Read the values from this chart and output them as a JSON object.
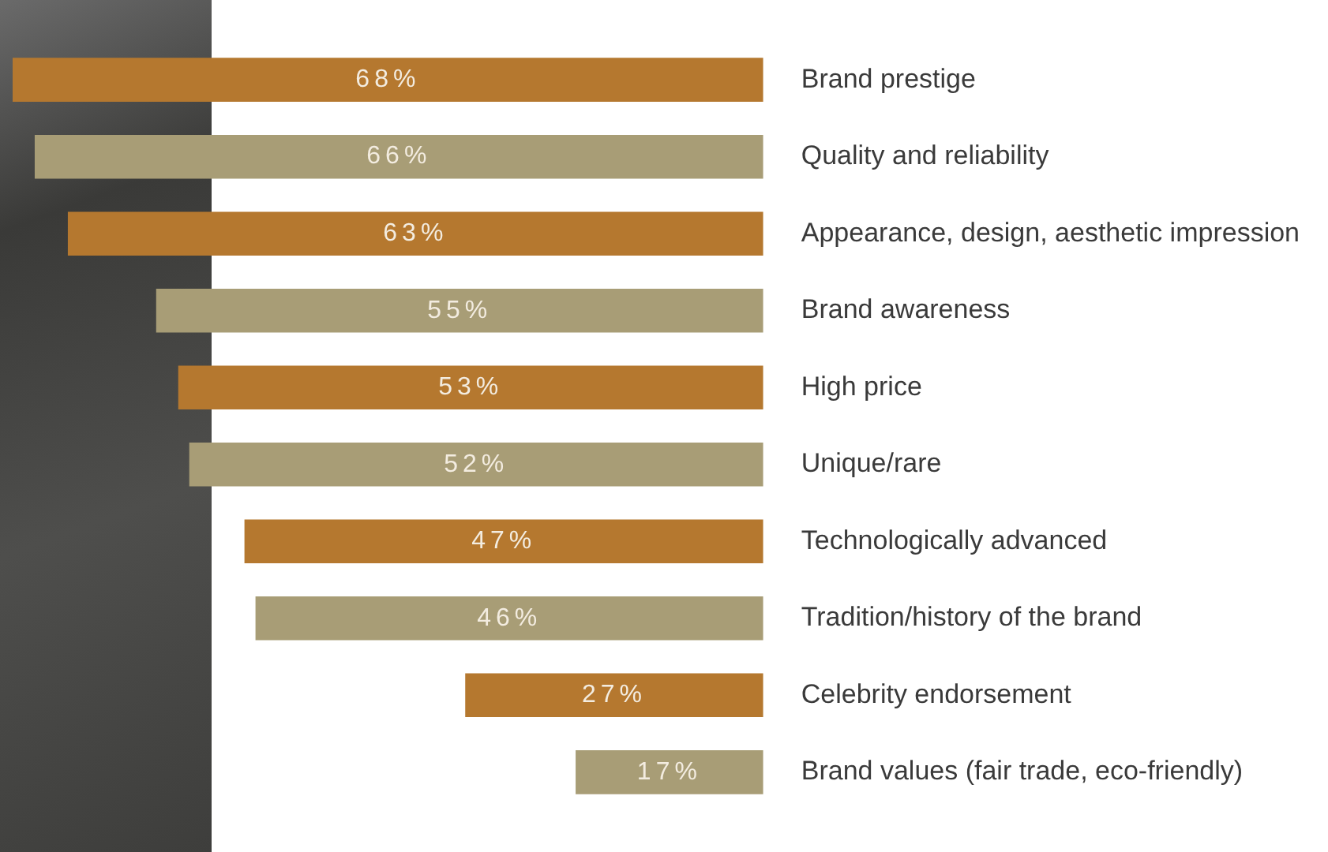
{
  "chart_data": {
    "type": "bar",
    "orientation": "horizontal",
    "value_labels": [
      "68%",
      "66%",
      "63%",
      "55%",
      "53%",
      "52%",
      "47%",
      "46%",
      "27%",
      "17%"
    ],
    "categories": [
      "Brand prestige",
      "Quality and reliability",
      "Appearance, design, aesthetic impression",
      "Brand awareness",
      "High price",
      "Unique/rare",
      "Technologically advanced",
      "Tradition/history of the brand",
      "Celebrity endorsement",
      "Brand values (fair trade, eco-friendly)"
    ],
    "values": [
      68,
      66,
      63,
      55,
      53,
      52,
      47,
      46,
      27,
      17
    ],
    "colors": [
      "#b5782f",
      "#a89d76",
      "#b5782f",
      "#a89d76",
      "#b5782f",
      "#a89d76",
      "#b5782f",
      "#a89d76",
      "#b5782f",
      "#a89d76"
    ]
  }
}
